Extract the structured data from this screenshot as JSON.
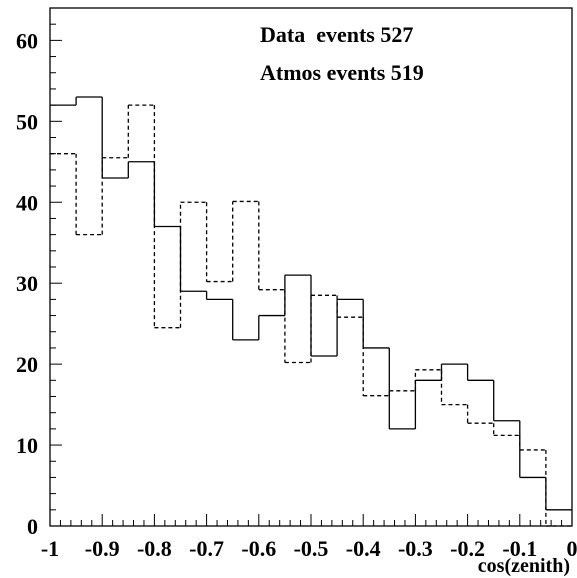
{
  "chart_data": {
    "type": "histogram",
    "title": "",
    "xlabel": "cos(zenith)",
    "ylabel": "",
    "xlim": [
      -1,
      0
    ],
    "ylim": [
      0,
      64
    ],
    "grid": false,
    "bin_edges": [
      -1.0,
      -0.95,
      -0.9,
      -0.85,
      -0.8,
      -0.75,
      -0.7,
      -0.65,
      -0.6,
      -0.55,
      -0.5,
      -0.45,
      -0.4,
      -0.35,
      -0.3,
      -0.25,
      -0.2,
      -0.15,
      -0.1,
      -0.05,
      0.0
    ],
    "x_ticks": [
      -1,
      -0.9,
      -0.8,
      -0.7,
      -0.6,
      -0.5,
      -0.4,
      -0.3,
      -0.2,
      -0.1,
      0
    ],
    "x_tick_labels": [
      "-1",
      "-0.9",
      "-0.8",
      "-0.7",
      "-0.6",
      "-0.5",
      "-0.4",
      "-0.3",
      "-0.2",
      "-0.1",
      "0"
    ],
    "y_ticks": [
      0,
      10,
      20,
      30,
      40,
      50,
      60
    ],
    "y_tick_labels": [
      "0",
      "10",
      "20",
      "30",
      "40",
      "50",
      "60"
    ],
    "annotations": [
      "Data  events 527",
      "Atmos events 519"
    ],
    "series": [
      {
        "style": "solid",
        "values": [
          52,
          53,
          43,
          45,
          37,
          29,
          28,
          23,
          26,
          31,
          21,
          28,
          22,
          12,
          18,
          20,
          18,
          13,
          6,
          2
        ]
      },
      {
        "style": "dashed",
        "values": [
          46,
          36,
          45.5,
          52,
          24.5,
          40,
          30.2,
          40.1,
          29.2,
          20.2,
          28.5,
          25.8,
          16.1,
          16.7,
          19.3,
          15,
          12.7,
          11.2,
          9.4,
          0
        ]
      }
    ]
  }
}
